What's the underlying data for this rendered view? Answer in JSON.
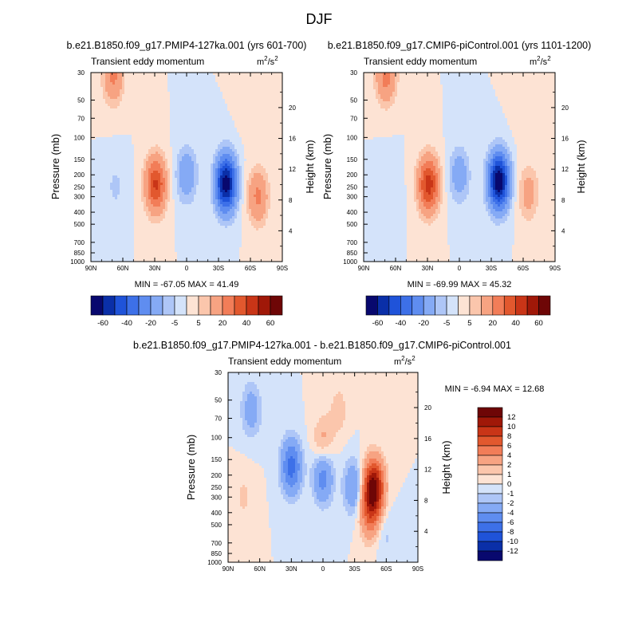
{
  "figure": {
    "title": "DJF"
  },
  "colors": {
    "palette": [
      "#08086e",
      "#0a2fa8",
      "#1f53d9",
      "#3d70e8",
      "#5f8df0",
      "#85aaf5",
      "#aec6f7",
      "#d4e3fa",
      "#fde3d4",
      "#fbc6ac",
      "#f7a382",
      "#f27d58",
      "#e2582e",
      "#c93517",
      "#a01808",
      "#6e0606"
    ],
    "diff_palette": [
      "#08086e",
      "#0a2fa8",
      "#1f53d9",
      "#3d70e8",
      "#5f8df0",
      "#85aaf5",
      "#aec6f7",
      "#d4e3fa",
      "#fde3d4",
      "#fbc6ac",
      "#f7a382",
      "#f27d58",
      "#e2582e",
      "#c93517",
      "#a01808",
      "#6e0606"
    ]
  },
  "chart_data": [
    {
      "type": "heatmap",
      "title": "b.e21.B1850.f09_g17.PMIP4-127ka.001 (yrs 601-700)",
      "panel_label": "Transient eddy momentum",
      "units": "m2/s2",
      "units_base": "m",
      "units_exp1": "2",
      "units_mid": "/s",
      "units_exp2": "2",
      "x_ticks": [
        "90N",
        "60N",
        "30N",
        "0",
        "30S",
        "60S",
        "90S"
      ],
      "x_values": [
        90,
        60,
        30,
        0,
        -30,
        -60,
        -90
      ],
      "xlim": [
        90,
        -90
      ],
      "y_ticks": [
        "30",
        "50",
        "70",
        "100",
        "150",
        "200",
        "250",
        "300",
        "400",
        "500",
        "700",
        "850",
        "1000"
      ],
      "y_values": [
        30,
        50,
        70,
        100,
        150,
        200,
        250,
        300,
        400,
        500,
        700,
        850,
        1000
      ],
      "ylim": [
        1000,
        30
      ],
      "ylabel": "Pressure (mb)",
      "y2_ticks": [
        "20",
        "16",
        "12",
        "8",
        "4"
      ],
      "y2_values": [
        20,
        16,
        12,
        8,
        4
      ],
      "y2label": "Height (km)",
      "stats": "MIN = -67.05  MAX = 41.49",
      "features": [
        {
          "lat": 29,
          "p": 240,
          "value": 41.49
        },
        {
          "lat": 69,
          "p": 32,
          "value": 22
        },
        {
          "lat": -37,
          "p": 235,
          "value": -67.05
        },
        {
          "lat": 0,
          "p": 200,
          "value": -18
        },
        {
          "lat": 67,
          "p": 250,
          "value": -6
        },
        {
          "lat": -67,
          "p": 300,
          "value": 22
        },
        {
          "lat": -60,
          "p": 60,
          "value": 4
        }
      ],
      "colorbar": {
        "orientation": "horizontal",
        "levels": [
          "-60",
          "",
          "-40",
          "",
          "-20",
          "",
          "-5",
          "",
          "5",
          "",
          "20",
          "",
          "40",
          "",
          "60"
        ],
        "level_values": [
          -60,
          -50,
          -40,
          -30,
          -20,
          -10,
          -5,
          0,
          5,
          10,
          20,
          30,
          40,
          50,
          60
        ]
      }
    },
    {
      "type": "heatmap",
      "title": "b.e21.B1850.f09_g17.CMIP6-piControl.001 (yrs 1101-1200)",
      "panel_label": "Transient eddy momentum",
      "units": "m2/s2",
      "units_base": "m",
      "units_exp1": "2",
      "units_mid": "/s",
      "units_exp2": "2",
      "x_ticks": [
        "90N",
        "60N",
        "30N",
        "0",
        "30S",
        "60S",
        "90S"
      ],
      "x_values": [
        90,
        60,
        30,
        0,
        -30,
        -60,
        -90
      ],
      "xlim": [
        90,
        -90
      ],
      "y_ticks": [
        "30",
        "50",
        "70",
        "100",
        "150",
        "200",
        "250",
        "300",
        "400",
        "500",
        "700",
        "850",
        "1000"
      ],
      "y_values": [
        30,
        50,
        70,
        100,
        150,
        200,
        250,
        300,
        400,
        500,
        700,
        850,
        1000
      ],
      "ylim": [
        1000,
        30
      ],
      "ylabel": "Pressure (mb)",
      "y2_ticks": [
        "20",
        "16",
        "12",
        "8",
        "4"
      ],
      "y2_values": [
        20,
        16,
        12,
        8,
        4
      ],
      "y2label": "Height (km)",
      "stats": "MIN = -69.99  MAX = 45.32",
      "features": [
        {
          "lat": 29,
          "p": 240,
          "value": 45.32
        },
        {
          "lat": 69,
          "p": 32,
          "value": 24
        },
        {
          "lat": -37,
          "p": 225,
          "value": -69.99
        },
        {
          "lat": 0,
          "p": 200,
          "value": -16
        },
        {
          "lat": 67,
          "p": 250,
          "value": -5
        },
        {
          "lat": -65,
          "p": 280,
          "value": 14
        },
        {
          "lat": -60,
          "p": 60,
          "value": 4
        }
      ],
      "colorbar": {
        "orientation": "horizontal",
        "levels": [
          "-60",
          "",
          "-40",
          "",
          "-20",
          "",
          "-5",
          "",
          "5",
          "",
          "20",
          "",
          "40",
          "",
          "60"
        ],
        "level_values": [
          -60,
          -50,
          -40,
          -30,
          -20,
          -10,
          -5,
          0,
          5,
          10,
          20,
          30,
          40,
          50,
          60
        ]
      }
    },
    {
      "type": "heatmap",
      "title": "b.e21.B1850.f09_g17.PMIP4-127ka.001 - b.e21.B1850.f09_g17.CMIP6-piControl.001",
      "panel_label": "Transient eddy momentum",
      "units": "m2/s2",
      "units_base": "m",
      "units_exp1": "2",
      "units_mid": "/s",
      "units_exp2": "2",
      "x_ticks": [
        "90N",
        "60N",
        "30N",
        "0",
        "30S",
        "60S",
        "90S"
      ],
      "x_values": [
        90,
        60,
        30,
        0,
        -30,
        -60,
        -90
      ],
      "xlim": [
        90,
        -90
      ],
      "y_ticks": [
        "30",
        "50",
        "70",
        "100",
        "150",
        "200",
        "250",
        "300",
        "400",
        "500",
        "700",
        "850",
        "1000"
      ],
      "y_values": [
        30,
        50,
        70,
        100,
        150,
        200,
        250,
        300,
        400,
        500,
        700,
        850,
        1000
      ],
      "ylim": [
        1000,
        30
      ],
      "ylabel": "Pressure (mb)",
      "y2_ticks": [
        "20",
        "16",
        "12",
        "8",
        "4"
      ],
      "y2_values": [
        20,
        16,
        12,
        8,
        4
      ],
      "y2label": "Height (km)",
      "stats": "MIN =  -6.94  MAX =  12.68",
      "features": [
        {
          "lat": -48,
          "p": 250,
          "value": 12.68
        },
        {
          "lat": -44,
          "p": 400,
          "value": 5
        },
        {
          "lat": 30,
          "p": 170,
          "value": -6.94
        },
        {
          "lat": 0,
          "p": 200,
          "value": -5.5
        },
        {
          "lat": -29,
          "p": 250,
          "value": -4
        },
        {
          "lat": 68,
          "p": 60,
          "value": -3
        },
        {
          "lat": 0,
          "p": 115,
          "value": 3
        },
        {
          "lat": -15,
          "p": 60,
          "value": 1.5
        },
        {
          "lat": 75,
          "p": 300,
          "value": 1.2
        },
        {
          "lat": -60,
          "p": 600,
          "value": -1.2
        }
      ],
      "colorbar": {
        "orientation": "vertical",
        "levels": [
          "12",
          "10",
          "8",
          "6",
          "4",
          "2",
          "1",
          "0",
          "-1",
          "-2",
          "-4",
          "-6",
          "-8",
          "-10",
          "-12"
        ],
        "level_values": [
          12,
          10,
          8,
          6,
          4,
          2,
          1,
          0,
          -1,
          -2,
          -4,
          -6,
          -8,
          -10,
          -12
        ]
      }
    }
  ]
}
